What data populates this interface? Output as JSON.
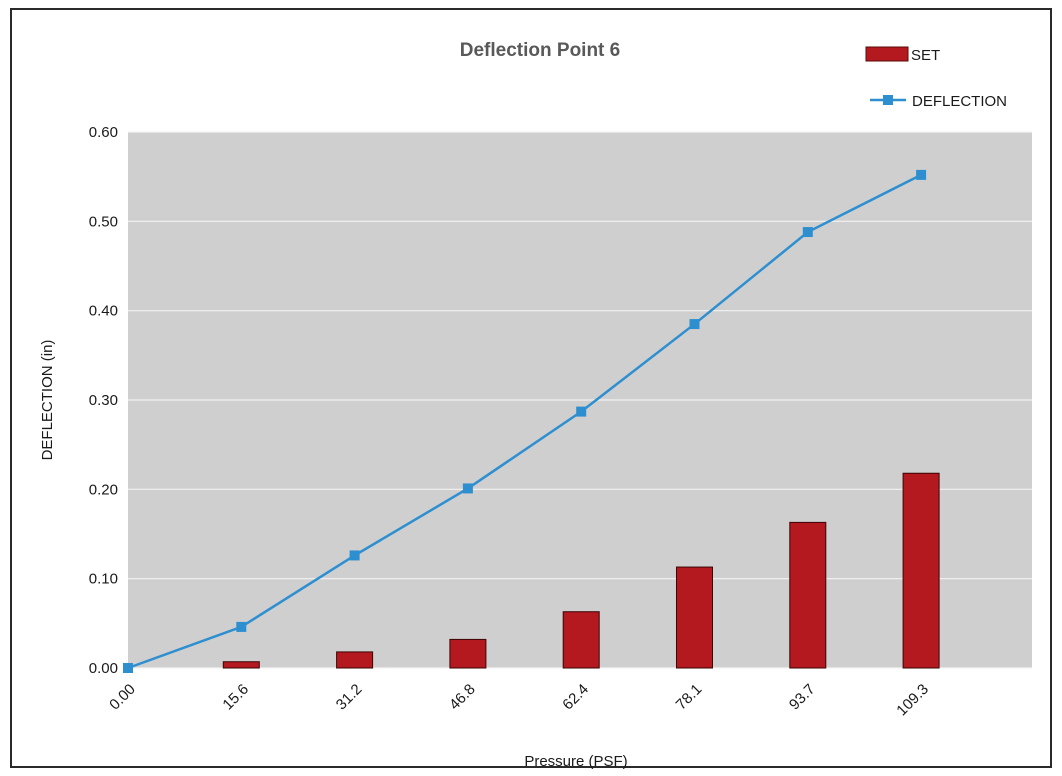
{
  "chart_data": {
    "type": "bar",
    "title": "Deflection Point 6",
    "xlabel": "Pressure (PSF)",
    "ylabel": "DEFLECTION (in)",
    "categories": [
      "0.00",
      "15.6",
      "31.2",
      "46.8",
      "62.4",
      "78.1",
      "93.7",
      "109.3"
    ],
    "y_ticks": [
      "0.00",
      "0.10",
      "0.20",
      "0.30",
      "0.40",
      "0.50",
      "0.60"
    ],
    "ylim": [
      0,
      0.6
    ],
    "grid": true,
    "legend_position": "top-right",
    "series": [
      {
        "name": "SET",
        "type": "bar",
        "color": "#b3191f",
        "values": [
          0.0,
          0.007,
          0.018,
          0.032,
          0.063,
          0.113,
          0.163,
          0.218
        ]
      },
      {
        "name": "DEFLECTION",
        "type": "line",
        "color": "#2e8fd0",
        "values": [
          0.0,
          0.046,
          0.126,
          0.201,
          0.287,
          0.385,
          0.488,
          0.552
        ]
      }
    ]
  }
}
